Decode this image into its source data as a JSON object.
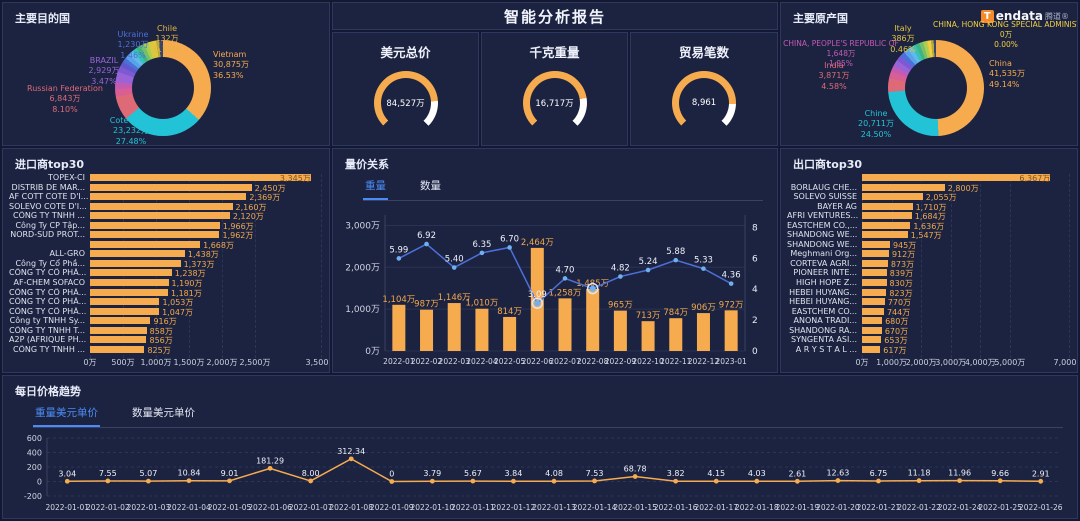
{
  "page": {
    "title": "智能分析报告"
  },
  "logo": {
    "brand": "Tendata",
    "suffix": "腾道®"
  },
  "colors": {
    "bar_orange": "#f6ab4f",
    "line_blue": "#4d6fd8",
    "dot_blue": "#6fb1f0",
    "tab_active": "#4c8bf5",
    "panel_bg": "#1c2340",
    "gauge_rest": "#ffffff"
  },
  "panels": {
    "dest": {
      "title": "主要目的国"
    },
    "origin": {
      "title": "主要原产国"
    },
    "importers": {
      "title": "进口商top30"
    },
    "price": {
      "title": "量价关系",
      "tabs": [
        "重量",
        "数量"
      ],
      "active_tab": 0
    },
    "exporters": {
      "title": "出口商top30"
    },
    "daily": {
      "title": "每日价格趋势",
      "tabs": [
        "重量美元单价",
        "数量美元单价"
      ],
      "active_tab": 0
    }
  },
  "gauges": [
    {
      "title": "美元总价",
      "value": "84,527万",
      "fill": 0.82
    },
    {
      "title": "千克重量",
      "value": "16,717万",
      "fill": 0.8
    },
    {
      "title": "贸易笔数",
      "value": "8,961",
      "fill": 0.84
    }
  ],
  "chart_data": [
    {
      "type": "pie",
      "title": "主要目的国",
      "legend_position": "around",
      "slices": [
        {
          "name": "Vietnam",
          "value_label": "30,875万",
          "pct": 36.53,
          "pct_label": "36.53%",
          "color": "#f6ab4f"
        },
        {
          "name": "Cote d'Iv...",
          "value_label": "23,232万",
          "pct": 27.48,
          "pct_label": "27.48%",
          "color": "#22c3d6"
        },
        {
          "name": "Russian Federation",
          "value_label": "6,843万",
          "pct": 8.1,
          "pct_label": "8.10%",
          "color": "#de6a77"
        },
        {
          "name": "",
          "pct": 2.6,
          "color": "#d75f93"
        },
        {
          "name": "",
          "pct": 2.3,
          "color": "#c45bb3"
        },
        {
          "name": "BRAZIL",
          "value_label": "2,929万",
          "pct": 3.47,
          "pct_label": "3.47%",
          "color": "#9a63d8"
        },
        {
          "name": "",
          "pct": 2.0,
          "color": "#7d5ad2"
        },
        {
          "name": "",
          "pct": 1.8,
          "color": "#5f58cf"
        },
        {
          "name": "Ukraine",
          "value_label": "1,230万",
          "pct": 1.46,
          "pct_label": "1.46%",
          "color": "#4d6fd8"
        },
        {
          "name": "",
          "pct": 1.7,
          "color": "#58a2e8"
        },
        {
          "name": "",
          "pct": 1.6,
          "color": "#62b9ea"
        },
        {
          "name": "",
          "pct": 1.55,
          "color": "#35c2b9"
        },
        {
          "name": "",
          "pct": 1.5,
          "color": "#41b380"
        },
        {
          "name": "",
          "pct": 1.45,
          "color": "#77c06a"
        },
        {
          "name": "",
          "pct": 1.4,
          "color": "#aace52"
        },
        {
          "name": "",
          "pct": 1.3,
          "color": "#d7c93f"
        },
        {
          "name": "",
          "pct": 1.2,
          "color": "#e3c33f"
        },
        {
          "name": "Chile",
          "value_label": "132万",
          "pct": 0.16,
          "pct_label": "0.16%",
          "color": "#f0d043"
        },
        {
          "name": "",
          "pct": 1.1,
          "color": "#b7a93a"
        },
        {
          "name": "",
          "pct": 1.3,
          "color": "#3a4468"
        }
      ]
    },
    {
      "type": "pie",
      "title": "主要原产国",
      "legend_position": "around",
      "slices": [
        {
          "name": "China",
          "value_label": "41,535万",
          "pct": 49.14,
          "pct_label": "49.14%",
          "color": "#f6ab4f"
        },
        {
          "name": "Chine",
          "value_label": "20,711万",
          "pct": 24.5,
          "pct_label": "24.50%",
          "color": "#22c3d6"
        },
        {
          "name": "India",
          "value_label": "3,871万",
          "pct": 4.58,
          "pct_label": "4.58%",
          "color": "#de6a77"
        },
        {
          "name": "",
          "pct": 2.4,
          "color": "#d75f93"
        },
        {
          "name": "CHINA, PEOPLE'S REPUBLIC OF",
          "value_label": "1,648万",
          "pct": 1.95,
          "pct_label": "1.95%",
          "color": "#c45bb3"
        },
        {
          "name": "",
          "pct": 2.2,
          "color": "#9a63d8"
        },
        {
          "name": "",
          "pct": 1.9,
          "color": "#7d5ad2"
        },
        {
          "name": "",
          "pct": 1.7,
          "color": "#4d6fd8"
        },
        {
          "name": "",
          "pct": 1.6,
          "color": "#58a2e8"
        },
        {
          "name": "",
          "pct": 1.5,
          "color": "#62b9ea"
        },
        {
          "name": "",
          "pct": 1.45,
          "color": "#35c2b9"
        },
        {
          "name": "",
          "pct": 1.4,
          "color": "#41b380"
        },
        {
          "name": "",
          "pct": 1.3,
          "color": "#77c06a"
        },
        {
          "name": "",
          "pct": 1.2,
          "color": "#aace52"
        },
        {
          "name": "Italy",
          "value_label": "386万",
          "pct": 0.46,
          "pct_label": "0.46%",
          "color": "#e3c33f"
        },
        {
          "name": "",
          "pct": 1.0,
          "color": "#f0d043"
        },
        {
          "name": "",
          "pct": 0.92,
          "color": "#b7a93a"
        },
        {
          "name": "",
          "pct": 0.8,
          "color": "#3a4468"
        },
        {
          "name": "CHINA, HONG KONG SPECIAL ADMINISTR",
          "value_label": "0万",
          "pct": 0.0,
          "pct_label": "0.00%",
          "color": "#f0d043"
        }
      ]
    },
    {
      "type": "bar",
      "orientation": "horizontal",
      "title": "进口商top30",
      "xmax": 3500,
      "categories": [
        "TOPEX-CI",
        "DISTRIB DE MAR...",
        "AF COTT COTE D'I...",
        "SOLEVO COTE D'I...",
        "CÔNG TY TNHH ...",
        "Công Ty CP Tập...",
        "NORD-SUD PROT...",
        "",
        "ALL-GRO",
        "Công Ty Cổ Phầ...",
        "CÔNG TY CỔ PHẦ...",
        "AF-CHEM SOFACO",
        "CÔNG TY CỔ PHẦ...",
        "CÔNG TY CỔ PHẦ...",
        "CÔNG TY CỔ PHẦ...",
        "Công ty TNHH Sy...",
        "CÔNG TY TNHH T...",
        "A2P (AFRIQUE PH...",
        "CÔNG TY TNHH ..."
      ],
      "values": [
        3345,
        2450,
        2369,
        2160,
        2120,
        1966,
        1962,
        1668,
        1438,
        1373,
        1238,
        1190,
        1181,
        1053,
        1047,
        916,
        858,
        856,
        825
      ],
      "value_labels": [
        "3,345万",
        "2,450万",
        "2,369万",
        "2,160万",
        "2,120万",
        "1,966万",
        "1,962万",
        "1,668万",
        "1,438万",
        "1,373万",
        "1,238万",
        "1,190万",
        "1,181万",
        "1,053万",
        "1,047万",
        "916万",
        "858万",
        "856万",
        "825万"
      ],
      "ticks": [
        {
          "label": "0万",
          "v": 0
        },
        {
          "label": "500万",
          "v": 500
        },
        {
          "label": "1,000万",
          "v": 1000
        },
        {
          "label": "1,500万",
          "v": 1500
        },
        {
          "label": "2,000万",
          "v": 2000
        },
        {
          "label": "2,500万",
          "v": 2500
        },
        {
          "label": "3,500万",
          "v": 3500
        }
      ]
    },
    {
      "type": "bar+line",
      "title": "量价关系",
      "legend": [
        "重量",
        "数量"
      ],
      "categories": [
        "2022-01",
        "2022-02",
        "2022-03",
        "2022-04",
        "2022-05",
        "2022-06",
        "2022-07",
        "2022-08",
        "2022-09",
        "2022-10",
        "2022-11",
        "2022-12",
        "2023-01"
      ],
      "bar_values": [
        1104,
        987,
        1146,
        1010,
        814,
        2464,
        1258,
        1485,
        965,
        713,
        784,
        906,
        972
      ],
      "bar_labels": [
        "1,104万",
        "987万",
        "1,146万",
        "1,010万",
        "814万",
        "2,464万",
        "1,258万",
        "1,485万",
        "965万",
        "713万",
        "784万",
        "906万",
        "972万"
      ],
      "line_values": [
        5.99,
        6.92,
        5.4,
        6.35,
        6.7,
        3.09,
        4.7,
        4.04,
        4.82,
        5.24,
        5.88,
        5.33,
        4.36
      ],
      "line_labels": [
        "5.99",
        "6.92",
        "5.40",
        "6.35",
        "6.70",
        "3.09",
        "4.70",
        "",
        "4.82",
        "5.24",
        "5.88",
        "5.33",
        "4.36"
      ],
      "emphasis_points": [
        5,
        7
      ],
      "left_ticks": [
        {
          "label": "0万",
          "v": 0
        },
        {
          "label": "1,000万",
          "v": 1000
        },
        {
          "label": "2,000万",
          "v": 2000
        },
        {
          "label": "3,000万",
          "v": 3000
        }
      ],
      "right_ticks": [
        {
          "label": "0",
          "v": 0
        },
        {
          "label": "2",
          "v": 2
        },
        {
          "label": "4",
          "v": 4
        },
        {
          "label": "6",
          "v": 6
        },
        {
          "label": "8",
          "v": 8
        }
      ],
      "left_max": 3250,
      "right_max": 8.8
    },
    {
      "type": "bar",
      "orientation": "horizontal",
      "title": "出口商top30",
      "xmax": 7000,
      "categories": [
        "",
        "BORLAUG CHE...",
        "SOLEVO SUISSE",
        "BAYER AG",
        "AFRI VENTURES...",
        "EASTCHEM CO.,...",
        "SHANDONG WE...",
        "SHANDONG WE...",
        "Meghmani Org...",
        "CORTEVA AGRI...",
        "PIONEER INTE...",
        "HIGH HOPE Z...",
        "HEBEI HUYANG...",
        "HEBEI HUYANG...",
        "EASTCHEM CO...",
        "ANONA TRADI...",
        "SHANDONG RA...",
        "SYNGENTA ASI...",
        "A R Y S T A L ..."
      ],
      "values": [
        6367,
        2800,
        2055,
        1710,
        1684,
        1636,
        1547,
        945,
        912,
        873,
        839,
        830,
        823,
        770,
        744,
        680,
        670,
        653,
        617
      ],
      "value_labels": [
        "6,367万",
        "2,800万",
        "2,055万",
        "1,710万",
        "1,684万",
        "1,636万",
        "1,547万",
        "945万",
        "912万",
        "873万",
        "839万",
        "830万",
        "823万",
        "770万",
        "744万",
        "680万",
        "670万",
        "653万",
        "617万"
      ],
      "ticks": [
        {
          "label": "0万",
          "v": 0
        },
        {
          "label": "1,000万",
          "v": 1000
        },
        {
          "label": "2,000万",
          "v": 2000
        },
        {
          "label": "3,000万",
          "v": 3000
        },
        {
          "label": "4,000万",
          "v": 4000
        },
        {
          "label": "5,000万",
          "v": 5000
        },
        {
          "label": "7,000万",
          "v": 7000
        }
      ]
    },
    {
      "type": "line",
      "title": "每日价格趋势",
      "legend": [
        "重量美元单价",
        "数量美元单价"
      ],
      "x": [
        "2022-01-01",
        "2022-01-02",
        "2022-01-03",
        "2022-01-04",
        "2022-01-05",
        "2022-01-06",
        "2022-01-07",
        "2022-01-08",
        "2022-01-09",
        "2022-01-10",
        "2022-01-11",
        "2022-01-12",
        "2022-01-13",
        "2022-01-14",
        "2022-01-15",
        "2022-01-16",
        "2022-01-17",
        "2022-01-18",
        "2022-01-19",
        "2022-01-20",
        "2022-01-21",
        "2022-01-22",
        "2022-01-24",
        "2022-01-25",
        "2022-01-26"
      ],
      "values": [
        3.04,
        7.55,
        5.07,
        10.84,
        9.01,
        181.29,
        8.0,
        312.34,
        0,
        3.79,
        5.67,
        3.84,
        4.08,
        7.53,
        68.78,
        3.82,
        4.15,
        4.03,
        2.61,
        12.63,
        6.75,
        11.18,
        11.96,
        9.66,
        2.91
      ],
      "labels": [
        "3.04",
        "7.55",
        "5.07",
        "10.84",
        "9.01",
        "181.29",
        "8.00",
        "312.34",
        "0",
        "3.79",
        "5.67",
        "3.84",
        "4.08",
        "7.53",
        "68.78",
        "3.82",
        "4.15",
        "4.03",
        "2.61",
        "12.63",
        "6.75",
        "11.18",
        "11.96",
        "9.66",
        "2.91"
      ],
      "y_ticks": [
        {
          "label": "600",
          "v": 600
        },
        {
          "label": "400",
          "v": 400
        },
        {
          "label": "200",
          "v": 200
        },
        {
          "label": "0",
          "v": 0
        },
        {
          "label": "-200",
          "v": -200
        }
      ],
      "ylim": [
        -200,
        600
      ]
    }
  ]
}
